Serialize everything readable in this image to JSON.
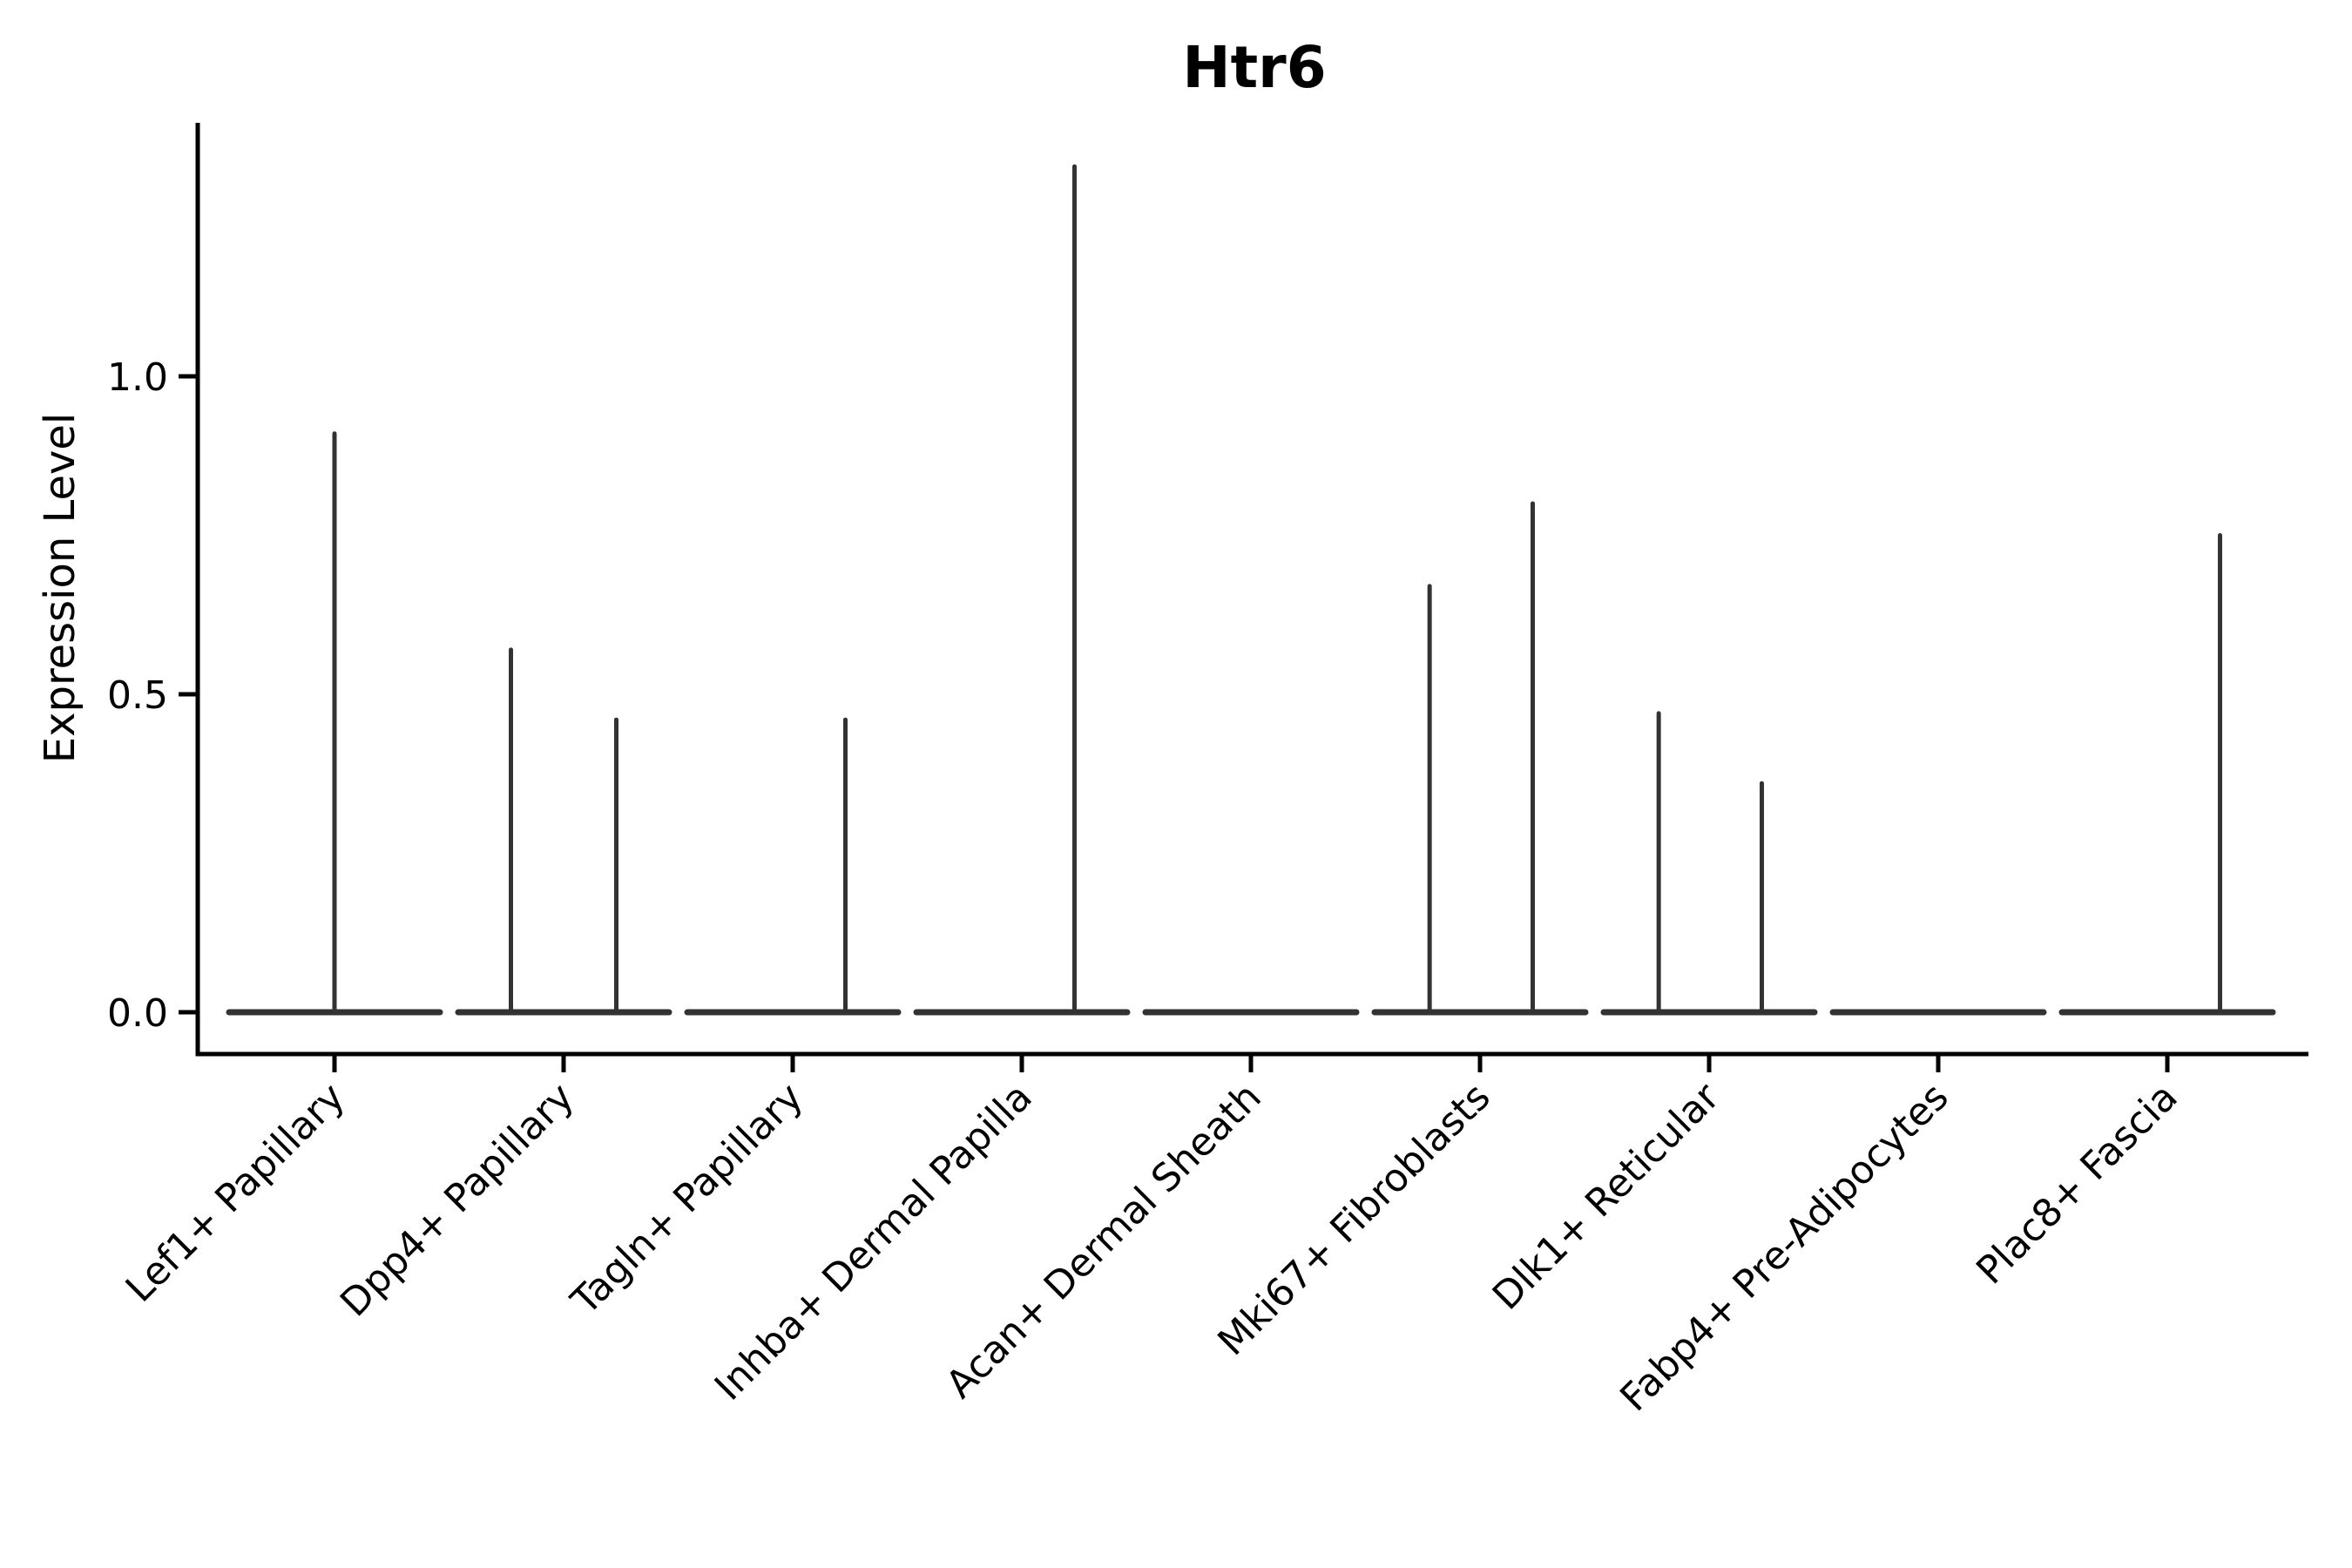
{
  "chart_data": {
    "type": "violin",
    "title": "Htr6",
    "xlabel": "",
    "ylabel": "Expression Level",
    "grid": false,
    "legend": null,
    "ylim": [
      -0.07,
      1.4
    ],
    "y_ticks": [
      {
        "value": 0.0,
        "label": "0.0"
      },
      {
        "value": 0.5,
        "label": "0.5"
      },
      {
        "value": 1.0,
        "label": "1.0"
      }
    ],
    "categories": [
      "Lef1+ Papillary",
      "Dpp4+ Papillary",
      "Tagln+ Papillary",
      "Inhba+ Dermal Papilla",
      "Acan+ Dermal Sheath",
      "Mki67+ Fibroblasts",
      "Dlk1+ Reticular",
      "Fabp4+ Pre-Adipocytes",
      "Plac8+ Fascia"
    ],
    "violins": [
      {
        "category": "Lef1+ Papillary",
        "baseline_value": 0,
        "max_expression": 0.91,
        "spikes": [
          {
            "offset_frac": 0.0,
            "value": 0.91
          }
        ]
      },
      {
        "category": "Dpp4+ Papillary",
        "baseline_value": 0,
        "max_expression": 0.57,
        "spikes": [
          {
            "offset_frac": -0.23,
            "value": 0.57
          },
          {
            "offset_frac": 0.23,
            "value": 0.46
          }
        ]
      },
      {
        "category": "Tagln+ Papillary",
        "baseline_value": 0,
        "max_expression": 0.46,
        "spikes": [
          {
            "offset_frac": 0.23,
            "value": 0.46
          }
        ]
      },
      {
        "category": "Inhba+ Dermal Papilla",
        "baseline_value": 0,
        "max_expression": 1.33,
        "spikes": [
          {
            "offset_frac": 0.23,
            "value": 1.33
          }
        ]
      },
      {
        "category": "Acan+ Dermal Sheath",
        "baseline_value": 0,
        "max_expression": 0.0,
        "spikes": []
      },
      {
        "category": "Mki67+ Fibroblasts",
        "baseline_value": 0,
        "max_expression": 0.8,
        "spikes": [
          {
            "offset_frac": -0.22,
            "value": 0.67
          },
          {
            "offset_frac": 0.23,
            "value": 0.8
          }
        ]
      },
      {
        "category": "Dlk1+ Reticular",
        "baseline_value": 0,
        "max_expression": 0.47,
        "spikes": [
          {
            "offset_frac": -0.22,
            "value": 0.47
          },
          {
            "offset_frac": 0.23,
            "value": 0.36
          }
        ]
      },
      {
        "category": "Fabp4+ Pre-Adipocytes",
        "baseline_value": 0,
        "max_expression": 0.0,
        "spikes": []
      },
      {
        "category": "Plac8+ Fascia",
        "baseline_value": 0,
        "max_expression": 0.75,
        "spikes": [
          {
            "offset_frac": 0.23,
            "value": 0.75
          }
        ]
      }
    ],
    "colors": {
      "violin_line": "#333333",
      "axis": "#000000",
      "text": "#000000",
      "background": "#ffffff"
    }
  }
}
